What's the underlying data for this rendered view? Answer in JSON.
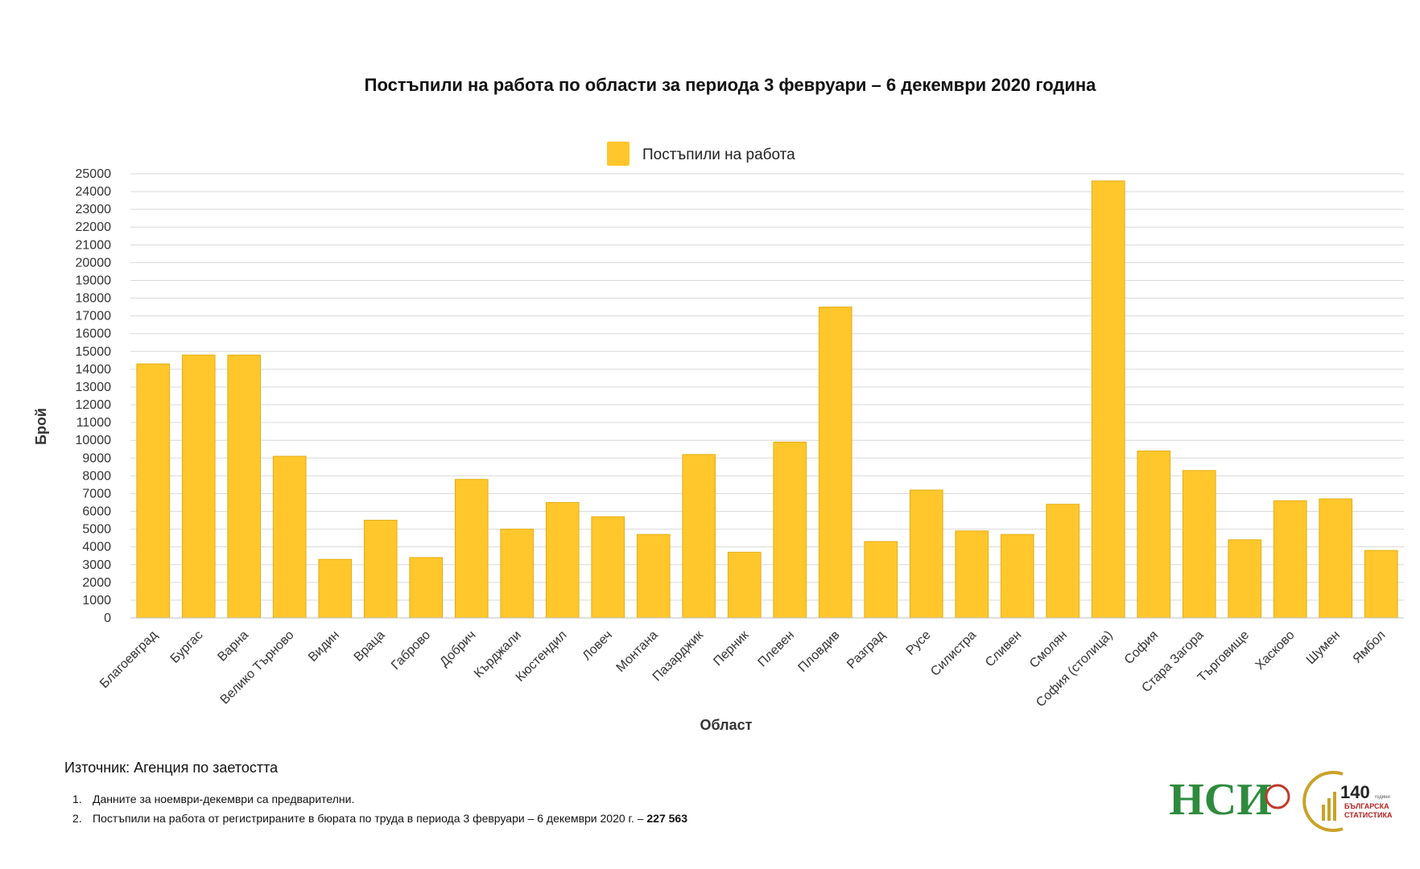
{
  "chart_data": {
    "type": "bar",
    "title": "Постъпили на работа по области за периода 3 февруари – 6 декември 2020 година",
    "xlabel": "Област",
    "ylabel": "Брой",
    "ylim": [
      0,
      25000
    ],
    "ytick_step": 1000,
    "grid": true,
    "legend_position": "top-center",
    "bar_color": "#FFC72C",
    "categories": [
      "Благоевград",
      "Бургас",
      "Варна",
      "Велико Търново",
      "Видин",
      "Враца",
      "Габрово",
      "Добрич",
      "Кърджали",
      "Кюстендил",
      "Ловеч",
      "Монтана",
      "Пазарджик",
      "Перник",
      "Плевен",
      "Пловдив",
      "Разград",
      "Русе",
      "Силистра",
      "Сливен",
      "Смолян",
      "София (столица)",
      "София",
      "Стара Загора",
      "Търговище",
      "Хасково",
      "Шумен",
      "Ямбол"
    ],
    "series": [
      {
        "name": "Постъпили на работа",
        "values": [
          14300,
          14800,
          14800,
          9100,
          3300,
          5500,
          3400,
          7800,
          5000,
          6500,
          5700,
          4700,
          9200,
          3700,
          9900,
          17500,
          4300,
          7200,
          4900,
          4700,
          6400,
          24600,
          9400,
          8300,
          4400,
          6600,
          6700,
          3800
        ]
      }
    ]
  },
  "footer": {
    "source": "Източник: Агенция по заетостта",
    "notes": [
      {
        "num": "1.",
        "text": "Данните за ноември-декември  са предварителни.",
        "bold": ""
      },
      {
        "num": "2.",
        "text": "Постъпили на работа от регистрираните в бюрата по труда в периода  3 февруари – 6 декември  2020 г. – ",
        "bold": "227 563"
      }
    ]
  },
  "logos": {
    "nsi_text": "НСИ",
    "anniversary_number": "140",
    "anniversary_small": "години",
    "anniversary_line1": "БЪЛГАРСКА",
    "anniversary_line2": "СТАТИСТИКА"
  },
  "colors": {
    "nsi_red": "#c0392b",
    "nsi_green": "#2e8b3d",
    "anniv_gold": "#c9a227",
    "anniv_red": "#b22222"
  }
}
